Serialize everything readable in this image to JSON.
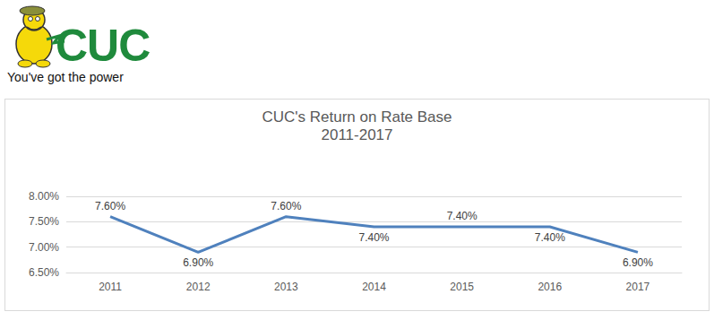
{
  "logo": {
    "name": "CUC",
    "tagline": "You've got the power"
  },
  "chart_data": {
    "type": "line",
    "title": "CUC's Return on Rate Base",
    "subtitle": "2011-2017",
    "categories": [
      "2011",
      "2012",
      "2013",
      "2014",
      "2015",
      "2016",
      "2017"
    ],
    "values": [
      7.6,
      6.9,
      7.6,
      7.4,
      7.4,
      7.4,
      6.9
    ],
    "value_labels": [
      "7.60%",
      "6.90%",
      "7.60%",
      "7.40%",
      "7.40%",
      "7.40%",
      "6.90%"
    ],
    "color": "#4f81bd",
    "ylim": [
      6.5,
      8
    ],
    "yticks": [
      {
        "value": 6.5,
        "label": "6.50%"
      },
      {
        "value": 7,
        "label": "7.00%"
      },
      {
        "value": 7.5,
        "label": "7.50%"
      },
      {
        "value": 8,
        "label": "8.00%"
      }
    ],
    "grid": true,
    "data_labels": true
  }
}
